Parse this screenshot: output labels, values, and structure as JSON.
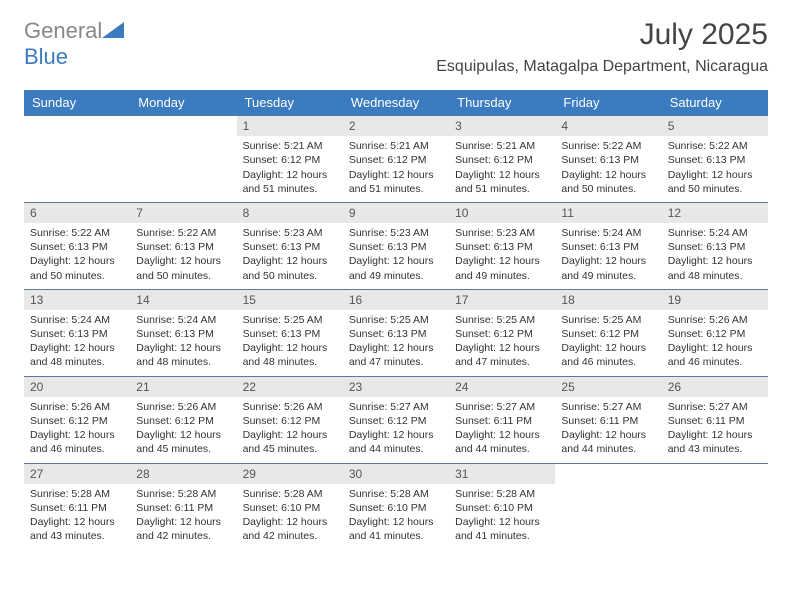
{
  "brand": {
    "part1": "General",
    "part2": "Blue"
  },
  "title": "July 2025",
  "location": "Esquipulas, Matagalpa Department, Nicaragua",
  "colors": {
    "header_bg": "#3b7bbf",
    "daynum_bg": "#e8e8e8",
    "row_border": "#5a7a9a",
    "text": "#333333",
    "brand_gray": "#888888",
    "brand_blue": "#3b7bbf",
    "background": "#ffffff"
  },
  "weekdays": [
    "Sunday",
    "Monday",
    "Tuesday",
    "Wednesday",
    "Thursday",
    "Friday",
    "Saturday"
  ],
  "weeks": [
    [
      {
        "n": "",
        "empty": true
      },
      {
        "n": "",
        "empty": true
      },
      {
        "n": "1",
        "lines": [
          "Sunrise: 5:21 AM",
          "Sunset: 6:12 PM",
          "Daylight: 12 hours and 51 minutes."
        ]
      },
      {
        "n": "2",
        "lines": [
          "Sunrise: 5:21 AM",
          "Sunset: 6:12 PM",
          "Daylight: 12 hours and 51 minutes."
        ]
      },
      {
        "n": "3",
        "lines": [
          "Sunrise: 5:21 AM",
          "Sunset: 6:12 PM",
          "Daylight: 12 hours and 51 minutes."
        ]
      },
      {
        "n": "4",
        "lines": [
          "Sunrise: 5:22 AM",
          "Sunset: 6:13 PM",
          "Daylight: 12 hours and 50 minutes."
        ]
      },
      {
        "n": "5",
        "lines": [
          "Sunrise: 5:22 AM",
          "Sunset: 6:13 PM",
          "Daylight: 12 hours and 50 minutes."
        ]
      }
    ],
    [
      {
        "n": "6",
        "lines": [
          "Sunrise: 5:22 AM",
          "Sunset: 6:13 PM",
          "Daylight: 12 hours and 50 minutes."
        ]
      },
      {
        "n": "7",
        "lines": [
          "Sunrise: 5:22 AM",
          "Sunset: 6:13 PM",
          "Daylight: 12 hours and 50 minutes."
        ]
      },
      {
        "n": "8",
        "lines": [
          "Sunrise: 5:23 AM",
          "Sunset: 6:13 PM",
          "Daylight: 12 hours and 50 minutes."
        ]
      },
      {
        "n": "9",
        "lines": [
          "Sunrise: 5:23 AM",
          "Sunset: 6:13 PM",
          "Daylight: 12 hours and 49 minutes."
        ]
      },
      {
        "n": "10",
        "lines": [
          "Sunrise: 5:23 AM",
          "Sunset: 6:13 PM",
          "Daylight: 12 hours and 49 minutes."
        ]
      },
      {
        "n": "11",
        "lines": [
          "Sunrise: 5:24 AM",
          "Sunset: 6:13 PM",
          "Daylight: 12 hours and 49 minutes."
        ]
      },
      {
        "n": "12",
        "lines": [
          "Sunrise: 5:24 AM",
          "Sunset: 6:13 PM",
          "Daylight: 12 hours and 48 minutes."
        ]
      }
    ],
    [
      {
        "n": "13",
        "lines": [
          "Sunrise: 5:24 AM",
          "Sunset: 6:13 PM",
          "Daylight: 12 hours and 48 minutes."
        ]
      },
      {
        "n": "14",
        "lines": [
          "Sunrise: 5:24 AM",
          "Sunset: 6:13 PM",
          "Daylight: 12 hours and 48 minutes."
        ]
      },
      {
        "n": "15",
        "lines": [
          "Sunrise: 5:25 AM",
          "Sunset: 6:13 PM",
          "Daylight: 12 hours and 48 minutes."
        ]
      },
      {
        "n": "16",
        "lines": [
          "Sunrise: 5:25 AM",
          "Sunset: 6:13 PM",
          "Daylight: 12 hours and 47 minutes."
        ]
      },
      {
        "n": "17",
        "lines": [
          "Sunrise: 5:25 AM",
          "Sunset: 6:12 PM",
          "Daylight: 12 hours and 47 minutes."
        ]
      },
      {
        "n": "18",
        "lines": [
          "Sunrise: 5:25 AM",
          "Sunset: 6:12 PM",
          "Daylight: 12 hours and 46 minutes."
        ]
      },
      {
        "n": "19",
        "lines": [
          "Sunrise: 5:26 AM",
          "Sunset: 6:12 PM",
          "Daylight: 12 hours and 46 minutes."
        ]
      }
    ],
    [
      {
        "n": "20",
        "lines": [
          "Sunrise: 5:26 AM",
          "Sunset: 6:12 PM",
          "Daylight: 12 hours and 46 minutes."
        ]
      },
      {
        "n": "21",
        "lines": [
          "Sunrise: 5:26 AM",
          "Sunset: 6:12 PM",
          "Daylight: 12 hours and 45 minutes."
        ]
      },
      {
        "n": "22",
        "lines": [
          "Sunrise: 5:26 AM",
          "Sunset: 6:12 PM",
          "Daylight: 12 hours and 45 minutes."
        ]
      },
      {
        "n": "23",
        "lines": [
          "Sunrise: 5:27 AM",
          "Sunset: 6:12 PM",
          "Daylight: 12 hours and 44 minutes."
        ]
      },
      {
        "n": "24",
        "lines": [
          "Sunrise: 5:27 AM",
          "Sunset: 6:11 PM",
          "Daylight: 12 hours and 44 minutes."
        ]
      },
      {
        "n": "25",
        "lines": [
          "Sunrise: 5:27 AM",
          "Sunset: 6:11 PM",
          "Daylight: 12 hours and 44 minutes."
        ]
      },
      {
        "n": "26",
        "lines": [
          "Sunrise: 5:27 AM",
          "Sunset: 6:11 PM",
          "Daylight: 12 hours and 43 minutes."
        ]
      }
    ],
    [
      {
        "n": "27",
        "lines": [
          "Sunrise: 5:28 AM",
          "Sunset: 6:11 PM",
          "Daylight: 12 hours and 43 minutes."
        ]
      },
      {
        "n": "28",
        "lines": [
          "Sunrise: 5:28 AM",
          "Sunset: 6:11 PM",
          "Daylight: 12 hours and 42 minutes."
        ]
      },
      {
        "n": "29",
        "lines": [
          "Sunrise: 5:28 AM",
          "Sunset: 6:10 PM",
          "Daylight: 12 hours and 42 minutes."
        ]
      },
      {
        "n": "30",
        "lines": [
          "Sunrise: 5:28 AM",
          "Sunset: 6:10 PM",
          "Daylight: 12 hours and 41 minutes."
        ]
      },
      {
        "n": "31",
        "lines": [
          "Sunrise: 5:28 AM",
          "Sunset: 6:10 PM",
          "Daylight: 12 hours and 41 minutes."
        ]
      },
      {
        "n": "",
        "empty": true
      },
      {
        "n": "",
        "empty": true
      }
    ]
  ]
}
